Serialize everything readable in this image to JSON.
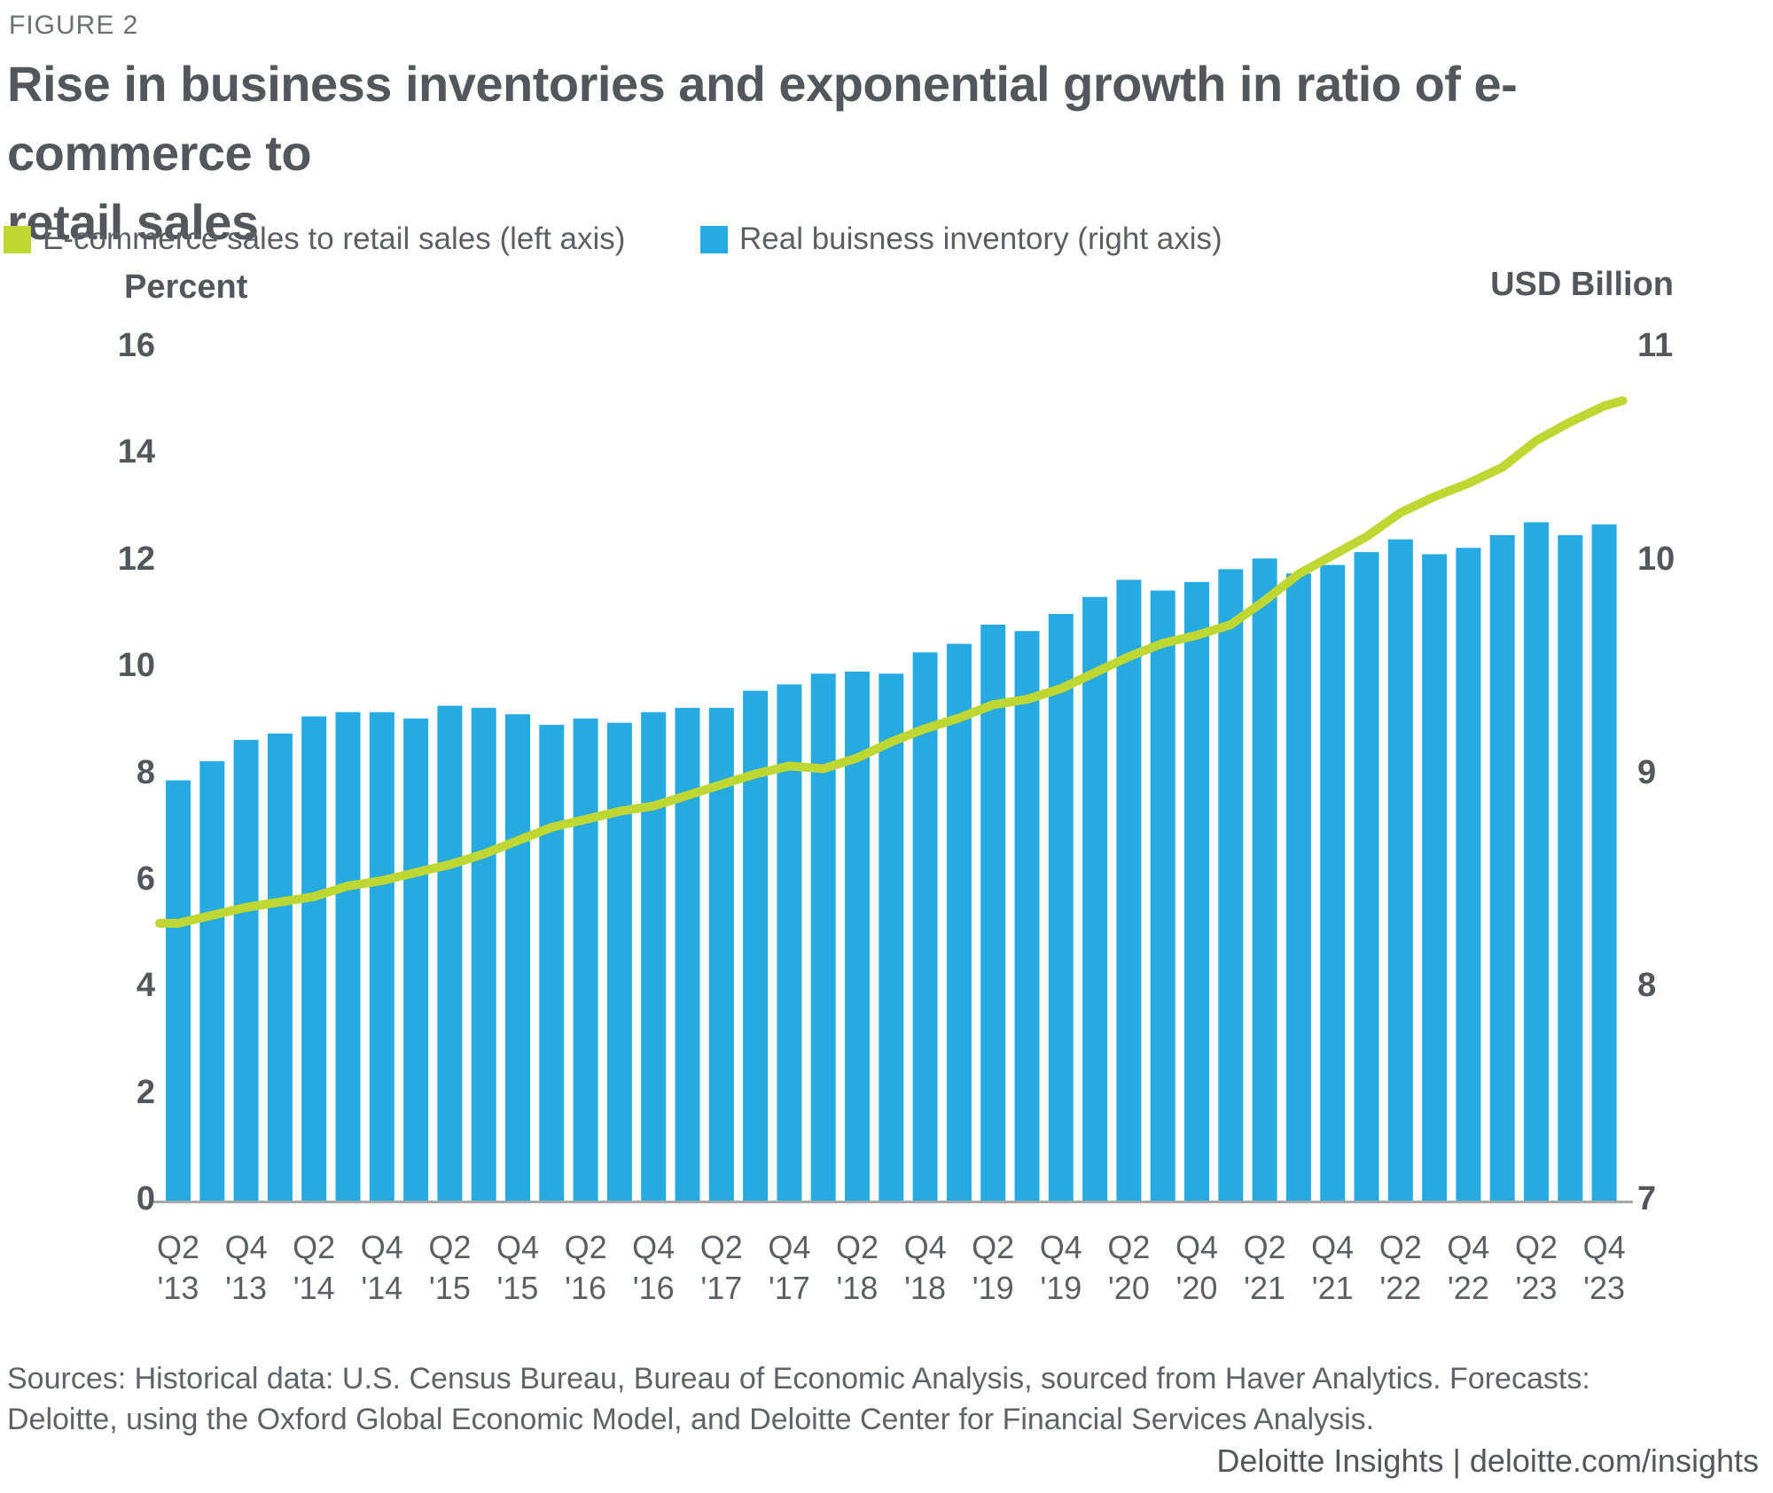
{
  "figure_label": "FIGURE 2",
  "title_lines": [
    "Rise in business inventories and exponential growth in ratio of e-commerce to",
    "retail sales"
  ],
  "legend": {
    "items": [
      {
        "label": "E-commerce sales to retail sales (left axis)",
        "color": "#BED733",
        "series": "line"
      },
      {
        "label": "Real buisness inventory (right axis)",
        "color": "#27A9E1",
        "series": "bar"
      }
    ]
  },
  "source_lines": [
    "Sources: Historical data: U.S. Census Bureau, Bureau of Economic Analysis, sourced from Haver Analytics. Forecasts:",
    "Deloitte, using the Oxford Global Economic Model, and Deloitte Center for Financial Services Analysis."
  ],
  "footer": "Deloitte Insights | deloitte.com/insights",
  "chart_data": {
    "type": "combo bar+line",
    "grid": false,
    "legend_position": "top-left",
    "left_axis": {
      "title": "Percent",
      "range": [
        0,
        16
      ],
      "ticks": [
        16,
        14,
        12,
        10,
        8,
        6,
        4,
        2,
        0
      ]
    },
    "right_axis": {
      "title": "USD Billion",
      "range": [
        7,
        11
      ],
      "ticks": [
        11,
        10,
        9,
        8,
        7
      ]
    },
    "x": [
      "Q2 '13",
      "Q3 '13",
      "Q4 '13",
      "Q1 '14",
      "Q2 '14",
      "Q3 '14",
      "Q4 '14",
      "Q1 '15",
      "Q2 '15",
      "Q3 '15",
      "Q4 '15",
      "Q1 '16",
      "Q2 '16",
      "Q3 '16",
      "Q4 '16",
      "Q1 '17",
      "Q2 '17",
      "Q3 '17",
      "Q4 '17",
      "Q1 '18",
      "Q2 '18",
      "Q3 '18",
      "Q4 '18",
      "Q1 '19",
      "Q2 '19",
      "Q3 '19",
      "Q4 '19",
      "Q1 '20",
      "Q2 '20",
      "Q3 '20",
      "Q4 '20",
      "Q1 '21",
      "Q2 '21",
      "Q3 '21",
      "Q4 '21",
      "Q1 '22",
      "Q2 '22",
      "Q3 '22",
      "Q4 '22",
      "Q1 '23",
      "Q2 '23",
      "Q3 '23",
      "Q4 '23"
    ],
    "x_axis_tick_labels": [
      "Q2 '13",
      "Q4 '13",
      "Q2 '14",
      "Q4 '14",
      "Q2 '15",
      "Q4 '15",
      "Q2 '16",
      "Q4 '16",
      "Q2 '17",
      "Q4 '17",
      "Q2 '18",
      "Q4 '18",
      "Q2 '19",
      "Q4 '19",
      "Q2 '20",
      "Q4 '20",
      "Q2 '21",
      "Q4 '21",
      "Q2 '22",
      "Q4 '22",
      "Q2 '23",
      "Q4 '23"
    ],
    "series": [
      {
        "name": "E-commerce sales to retail sales",
        "type": "line",
        "axis": "left",
        "unit": "percent",
        "color": "#BED733",
        "values": [
          5.2,
          5.35,
          5.5,
          5.6,
          5.7,
          5.9,
          6.0,
          6.15,
          6.3,
          6.5,
          6.75,
          7.0,
          7.15,
          7.3,
          7.4,
          7.6,
          7.8,
          8.0,
          8.15,
          8.1,
          8.3,
          8.6,
          8.85,
          9.05,
          9.3,
          9.4,
          9.6,
          9.9,
          10.2,
          10.45,
          10.6,
          10.8,
          11.25,
          11.75,
          12.1,
          12.45,
          12.9,
          13.2,
          13.45,
          13.75,
          14.25,
          14.6,
          14.9
        ],
        "end_value": 15.0
      },
      {
        "name": "Real buisness inventory",
        "type": "bar",
        "axis": "right",
        "unit": "USD billion",
        "color": "#27A9E1",
        "values": [
          8.97,
          9.06,
          9.16,
          9.19,
          9.27,
          9.29,
          9.29,
          9.26,
          9.32,
          9.31,
          9.28,
          9.23,
          9.26,
          9.24,
          9.29,
          9.31,
          9.31,
          9.39,
          9.42,
          9.47,
          9.48,
          9.47,
          9.57,
          9.61,
          9.7,
          9.67,
          9.75,
          9.83,
          9.91,
          9.86,
          9.9,
          9.96,
          10.01,
          9.94,
          9.98,
          10.04,
          10.1,
          10.03,
          10.06,
          10.12,
          10.18,
          10.12,
          10.17
        ]
      }
    ]
  }
}
